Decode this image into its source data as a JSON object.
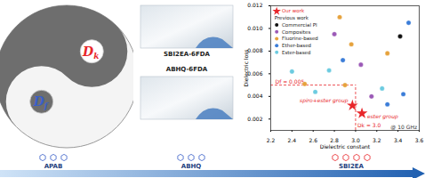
{
  "chart_data": {
    "type": "scatter",
    "x_label": "Dielectric constant",
    "y_label": "Dielectric loss",
    "xlim": [
      2.2,
      3.6
    ],
    "ylim": [
      0.001,
      0.012
    ],
    "xticks": [
      2.2,
      2.4,
      2.6,
      2.8,
      {
        "value": 3,
        "label": "3.0"
      },
      3.2,
      3.4,
      3.6
    ],
    "yticks": [
      0.002,
      0.004,
      0.006,
      0.008,
      {
        "value": 0.01,
        "label": "0.010"
      },
      0.012
    ],
    "grid": false,
    "legend": "top-left",
    "legend_header": "Previous work",
    "series": [
      {
        "name": "Our work",
        "color": "#e8262a",
        "marker": "star",
        "x": [
          2.97,
          3.06
        ],
        "values": [
          0.0032,
          0.0025
        ]
      },
      {
        "name": "Commercial PI",
        "color": "#111111",
        "marker": "circle",
        "x": [
          3.42
        ],
        "values": [
          0.0093
        ]
      },
      {
        "name": "Composites",
        "color": "#9b59b6",
        "marker": "circle",
        "x": [
          3.05,
          2.8,
          3.15
        ],
        "values": [
          0.0068,
          0.0095,
          0.004
        ]
      },
      {
        "name": "Fluorine-based",
        "color": "#e6a23c",
        "marker": "circle",
        "x": [
          2.85,
          2.96,
          2.52,
          2.9,
          3.3
        ],
        "values": [
          0.011,
          0.0086,
          0.0051,
          0.005,
          0.0078
        ]
      },
      {
        "name": "Ether-based",
        "color": "#3b7dd8",
        "marker": "circle",
        "x": [
          3.5,
          2.88,
          3.3,
          3.45
        ],
        "values": [
          0.0105,
          0.0072,
          0.0033,
          0.0042
        ]
      },
      {
        "name": "Ester-based",
        "color": "#6ccbe0",
        "marker": "circle",
        "x": [
          2.4,
          2.62,
          2.75,
          3.25
        ],
        "values": [
          0.0062,
          0.0044,
          0.0063,
          0.0047
        ]
      }
    ],
    "reference_lines": [
      {
        "axis": "y",
        "value": 0.005,
        "label": "Df = 0.005"
      },
      {
        "axis": "x",
        "value": 3.0,
        "label": "Dk = 3.0"
      }
    ],
    "annotations": [
      {
        "text": "spiro+ester group",
        "x": 2.93,
        "y": 0.0036
      },
      {
        "text": "ester group",
        "x": 3.11,
        "y": 0.0022
      },
      {
        "text": "@ 10 GHz",
        "x": 3.58,
        "y": 0.0013
      }
    ]
  },
  "diagram": {
    "yin_yang": [
      {
        "main": "D",
        "sub": "k",
        "color": "#e8262a"
      },
      {
        "main": "D",
        "sub": "f",
        "color": "#3a5fc8"
      }
    ],
    "films": [
      "SBI2EA-6FDA",
      "ABHQ-6FDA"
    ],
    "progression": [
      "APAB",
      "ABHQ",
      "SBI2EA"
    ]
  }
}
